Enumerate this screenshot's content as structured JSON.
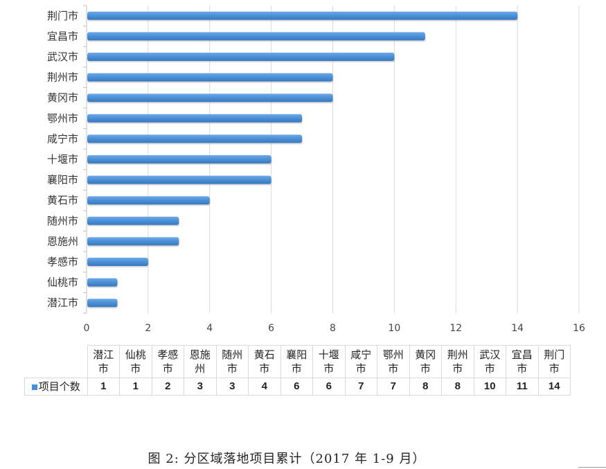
{
  "chart_data": {
    "type": "bar",
    "orientation": "horizontal",
    "categories": [
      "潜江市",
      "仙桃市",
      "孝感市",
      "恩施州",
      "随州市",
      "黄石市",
      "襄阳市",
      "十堰市",
      "咸宁市",
      "鄂州市",
      "黄冈市",
      "荆州市",
      "武汉市",
      "宜昌市",
      "荆门市"
    ],
    "series": [
      {
        "name": "项目个数",
        "values": [
          1,
          1,
          2,
          3,
          3,
          4,
          6,
          6,
          7,
          7,
          8,
          8,
          10,
          11,
          14
        ],
        "color": "#4a8fd6"
      }
    ],
    "xlim": [
      0,
      16
    ],
    "xticks": [
      "0",
      "2",
      "4",
      "6",
      "8",
      "10",
      "12",
      "14",
      "16"
    ],
    "grid": true,
    "legend": "data-table",
    "title": "图 2: 分区域落地项目累计（2017 年 1-9 月）"
  }
}
